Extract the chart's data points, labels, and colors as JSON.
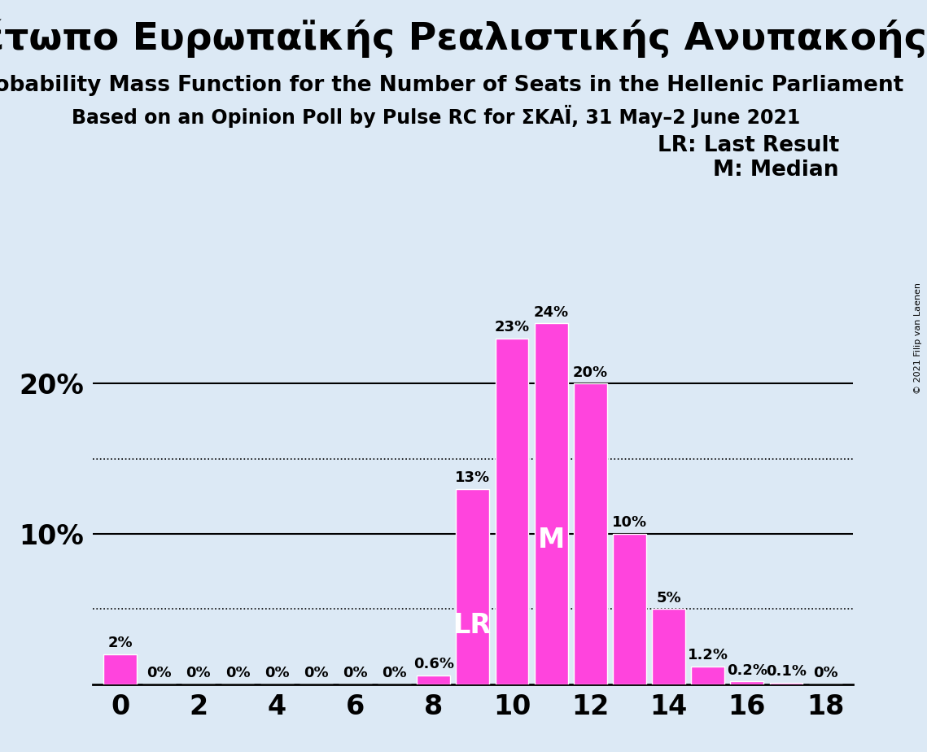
{
  "title_greek": "Μέτωπο Ευρωπαϊκής Ρεαλιστικής Ανυπακοής",
  "subtitle1": "Probability Mass Function for the Number of Seats in the Hellenic Parliament",
  "subtitle2": "Based on an Opinion Poll by Pulse RC for ΣΚΑΪ, 31 May–2 June 2021",
  "copyright": "© 2021 Filip van Laenen",
  "seats": [
    0,
    1,
    2,
    3,
    4,
    5,
    6,
    7,
    8,
    9,
    10,
    11,
    12,
    13,
    14,
    15,
    16,
    17,
    18
  ],
  "probabilities": [
    2.0,
    0.0,
    0.0,
    0.0,
    0.0,
    0.0,
    0.0,
    0.0,
    0.6,
    13.0,
    23.0,
    24.0,
    20.0,
    10.0,
    5.0,
    1.2,
    0.2,
    0.1,
    0.0
  ],
  "bar_color": "#FF44DD",
  "background_color": "#dce9f5",
  "LR_seat": 9,
  "median_seat": 11,
  "bar_labels": [
    "2%",
    "0%",
    "0%",
    "0%",
    "0%",
    "0%",
    "0%",
    "0%",
    "0.6%",
    "13%",
    "23%",
    "24%",
    "20%",
    "10%",
    "5%",
    "1.2%",
    "0.2%",
    "0.1%",
    "0%"
  ],
  "legend_lr": "LR: Last Result",
  "legend_m": "M: Median",
  "title_fontsize": 34,
  "subtitle1_fontsize": 19,
  "subtitle2_fontsize": 17,
  "bar_label_fontsize": 13,
  "legend_fontsize": 19,
  "ytick_fontsize": 24,
  "xtick_fontsize": 24,
  "lr_m_fontsize": 24,
  "ylim_max": 28,
  "solid_lines": [
    10,
    20
  ],
  "dotted_lines": [
    5,
    15
  ]
}
